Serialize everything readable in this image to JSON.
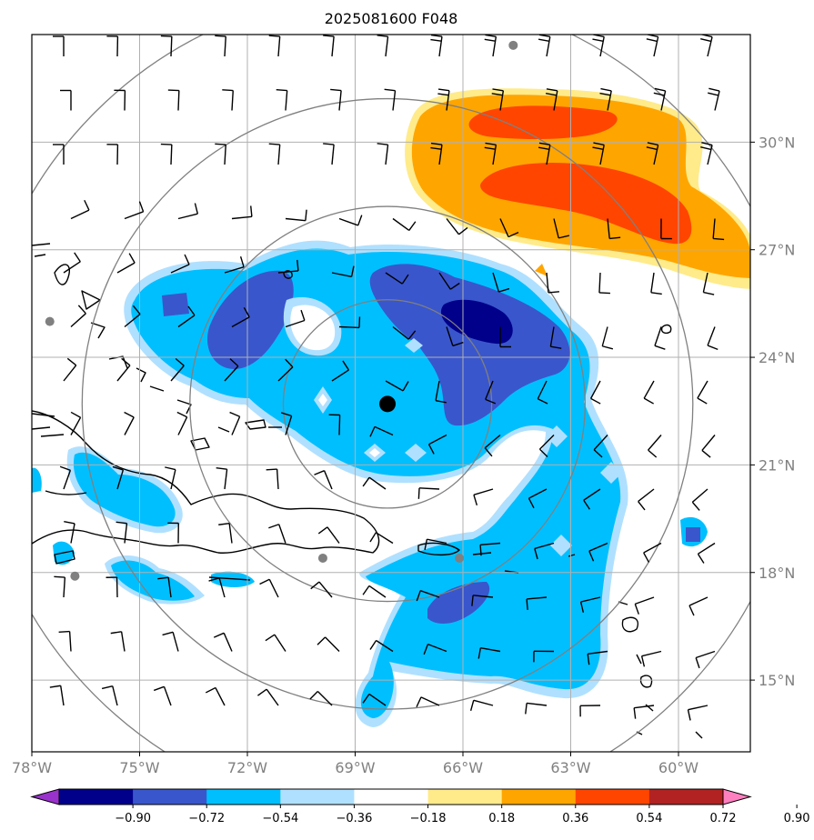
{
  "title": "2025081600 F048",
  "map": {
    "lon_range": [
      -78,
      -58
    ],
    "lat_range": [
      13,
      33
    ],
    "lon_ticks": [
      {
        "value": -78,
        "label": "78°W"
      },
      {
        "value": -75,
        "label": "75°W"
      },
      {
        "value": -72,
        "label": "72°W"
      },
      {
        "value": -69,
        "label": "69°W"
      },
      {
        "value": -66,
        "label": "66°W"
      },
      {
        "value": -63,
        "label": "63°W"
      },
      {
        "value": -60,
        "label": "60°W"
      }
    ],
    "lat_ticks": [
      {
        "value": 30,
        "label": "30°N"
      },
      {
        "value": 27,
        "label": "27°N"
      },
      {
        "value": 24,
        "label": "24°N"
      },
      {
        "value": 21,
        "label": "21°N"
      },
      {
        "value": 18,
        "label": "18°N"
      },
      {
        "value": 15,
        "label": "15°N"
      }
    ],
    "storm_center": {
      "lon": -68.1,
      "lat": 22.7
    },
    "range_rings_deg": [
      2.9,
      5.5,
      8.5,
      11.5
    ],
    "grid": true
  },
  "colorbar": {
    "colors": [
      "#9932cc",
      "#00008b",
      "#3a56cc",
      "#00bfff",
      "#b0e0ff",
      "#ffffff",
      "#ffeb8a",
      "#ffa500",
      "#ff4500",
      "#b22222",
      "#ff80c0"
    ],
    "tick_labels": [
      "−0.90",
      "−0.72",
      "−0.54",
      "−0.36",
      "−0.18",
      "0.18",
      "0.36",
      "0.54",
      "0.72",
      "0.90"
    ],
    "extend": "both"
  },
  "colors": {
    "grid": "#b0b0b0",
    "rings": "#808080",
    "coast": "#000000",
    "station": "#808080"
  }
}
